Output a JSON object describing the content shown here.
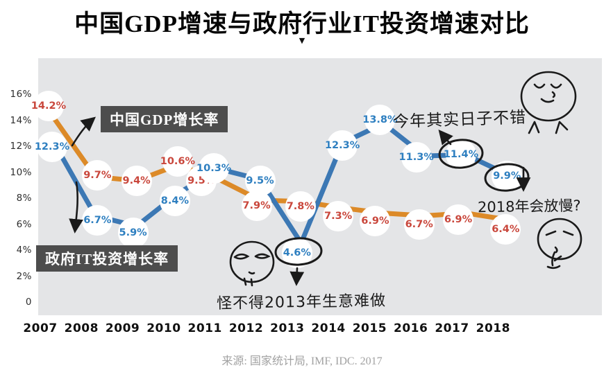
{
  "title": "中国GDP增速与政府行业IT投资增速对比",
  "title_caret": "▼",
  "source": "来源: 国家统计局, IMF, IDC. 2017",
  "chart_data": {
    "type": "line",
    "categories": [
      "2007",
      "2008",
      "2009",
      "2010",
      "2011",
      "2012",
      "2013",
      "2014",
      "2015",
      "2016",
      "2017",
      "2018"
    ],
    "series": [
      {
        "id": "gdp",
        "name": "中国GDP增长率",
        "color": "#dc8a28",
        "label_color": "#c9473c",
        "values": [
          14.2,
          9.7,
          9.4,
          10.6,
          9.5,
          7.9,
          7.8,
          7.3,
          6.9,
          6.7,
          6.9,
          6.4
        ]
      },
      {
        "id": "it",
        "name": "政府IT投资增长率",
        "color": "#3c78b4",
        "label_color": "#2e7fc0",
        "values": [
          12.3,
          6.7,
          5.9,
          8.4,
          10.3,
          9.5,
          4.6,
          12.3,
          13.8,
          11.3,
          11.4,
          9.9
        ]
      }
    ],
    "y_ticks": [
      "16%",
      "14%",
      "12%",
      "10%",
      "8%",
      "6%",
      "4%",
      "2%",
      "0"
    ],
    "ylim": [
      0,
      16
    ],
    "xlabel": "",
    "ylabel": "",
    "grid": false,
    "legend_position": "on-chart-callouts",
    "point_label_format": "value%",
    "circled_points": [
      "it-2013",
      "it-2017",
      "it-2018"
    ],
    "annotations": [
      {
        "text": "今年其实日子不错",
        "target": "it-2017"
      },
      {
        "text": "2018年会放慢?",
        "target": "it-2018"
      },
      {
        "text": "怪不得2013年生意难做",
        "target": "it-2013"
      }
    ]
  }
}
